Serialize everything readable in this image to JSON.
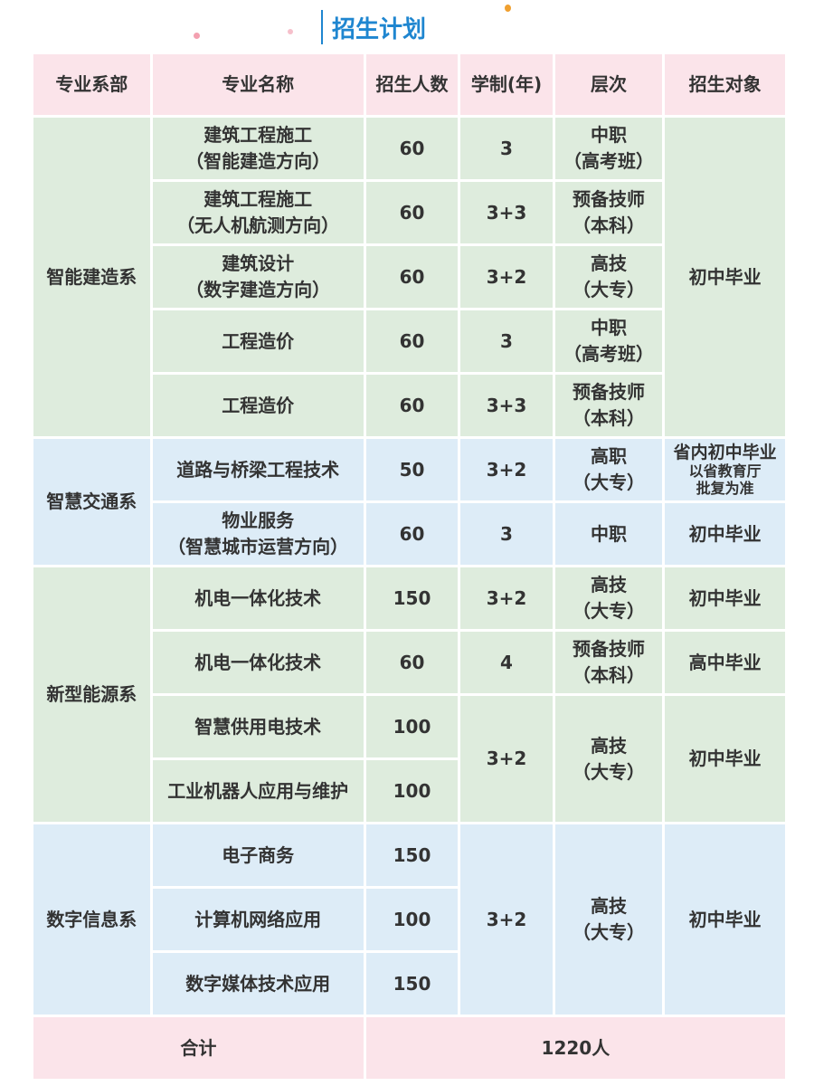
{
  "title": "招生计划",
  "colors": {
    "title": "#1f86d0",
    "header": "#fbe4ea",
    "green": "#deecdd",
    "blue": "#ddecf7"
  },
  "header": [
    "专业系部",
    "专业名称",
    "招生人数",
    "学制(年)",
    "层次",
    "招生对象"
  ],
  "groups": [
    {
      "dept": "智能建造系",
      "target": "初中毕业",
      "rows": [
        {
          "major": "建筑工程施工\n（智能建造方向）",
          "count": "60",
          "years": "3",
          "level": "中职\n（高考班）"
        },
        {
          "major": "建筑工程施工\n（无人机航测方向）",
          "count": "60",
          "years": "3+3",
          "level": "预备技师\n（本科）"
        },
        {
          "major": "建筑设计\n（数字建造方向）",
          "count": "60",
          "years": "3+2",
          "level": "高技\n（大专）"
        },
        {
          "major": "工程造价",
          "count": "60",
          "years": "3",
          "level": "中职\n（高考班）"
        },
        {
          "major": "工程造价",
          "count": "60",
          "years": "3+3",
          "level": "预备技师\n（本科）"
        }
      ]
    },
    {
      "dept": "智慧交通系",
      "rows": [
        {
          "major": "道路与桥梁工程技术",
          "count": "50",
          "years": "3+2",
          "level": "高职\n（大专）",
          "target_main": "省内初中毕业",
          "target_note": "以省教育厅\n批复为准"
        },
        {
          "major": "物业服务\n（智慧城市运营方向）",
          "count": "60",
          "years": "3",
          "level": "中职",
          "target": "初中毕业"
        }
      ]
    },
    {
      "dept": "新型能源系",
      "rows": [
        {
          "major": "机电一体化技术",
          "count": "150",
          "years": "3+2",
          "level": "高技\n（大专）",
          "target": "初中毕业"
        },
        {
          "major": "机电一体化技术",
          "count": "60",
          "years": "4",
          "level": "预备技师\n（本科）",
          "target": "高中毕业"
        },
        {
          "major": "智慧供用电技术",
          "count": "100",
          "years": "3+2",
          "level": "高技\n（大专）",
          "target": "初中毕业"
        },
        {
          "major": "工业机器人应用与维护",
          "count": "100"
        }
      ]
    },
    {
      "dept": "数字信息系",
      "years": "3+2",
      "level": "高技\n（大专）",
      "target": "初中毕业",
      "rows": [
        {
          "major": "电子商务",
          "count": "150"
        },
        {
          "major": "计算机网络应用",
          "count": "100"
        },
        {
          "major": "数字媒体技术应用",
          "count": "150"
        }
      ]
    }
  ],
  "total": {
    "label": "合计",
    "value": "1220人"
  }
}
